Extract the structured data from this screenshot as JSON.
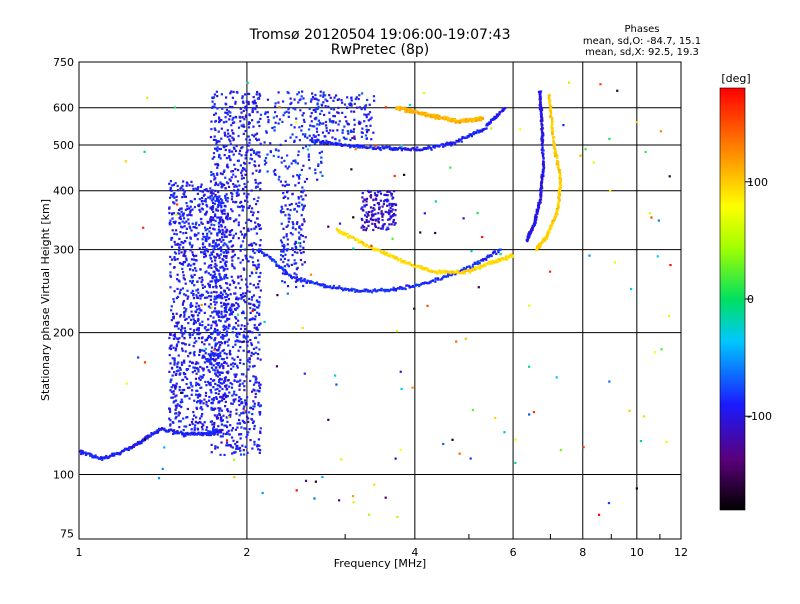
{
  "chart_data": {
    "type": "scatter",
    "title": "Tromsø 20120504 19:06:00-19:07:43",
    "subtitle": "RwPretec (8p)",
    "xlabel": "Frequency [MHz]",
    "ylabel": "Stationary phase Virtual Height [km]",
    "x_scale": "log",
    "y_scale": "log",
    "xlim": [
      1,
      12
    ],
    "ylim": [
      73,
      750
    ],
    "x_ticks": [
      1,
      2,
      4,
      6,
      8,
      10,
      12
    ],
    "x_tick_labels": [
      "1",
      "2",
      "4",
      "6",
      "8",
      "10",
      "12"
    ],
    "x_grid_lines": [
      1,
      2,
      4,
      6,
      8,
      10,
      12
    ],
    "y_ticks": [
      75,
      100,
      200,
      300,
      400,
      500,
      600,
      750
    ],
    "y_tick_labels": [
      "75",
      "100",
      "200",
      "300",
      "400",
      "500",
      "600",
      "750"
    ],
    "y_grid_lines": [
      100,
      200,
      300,
      400,
      500,
      600
    ],
    "grid": true,
    "phase_stats": {
      "heading": "Phases",
      "line_o": "mean, sd,O: -84.7, 15.1",
      "line_x": "mean, sd,X:  92.5, 19.3"
    },
    "colorbar": {
      "unit_label": "[deg]",
      "range": [
        -180,
        180
      ],
      "ticks": [
        100,
        0,
        -100
      ],
      "tick_labels": [
        "100",
        "0",
        "-100"
      ],
      "colormap": "rainbow (black-purple-blue-cyan-green-yellow-orange-red)"
    },
    "traces": [
      {
        "kind": "dense-band",
        "x_range": [
          1.72,
          2.12
        ],
        "y_range": [
          110,
          650
        ],
        "phase": -110
      },
      {
        "kind": "dense-band",
        "x_range": [
          1.45,
          1.85
        ],
        "y_range": [
          120,
          420
        ],
        "phase": -110
      },
      {
        "kind": "low-trace",
        "points": [
          [
            1.0,
            112
          ],
          [
            1.1,
            108
          ],
          [
            1.2,
            112
          ],
          [
            1.3,
            118
          ],
          [
            1.4,
            125
          ],
          [
            1.55,
            122
          ],
          [
            1.7,
            122
          ],
          [
            1.8,
            124
          ]
        ],
        "phase": -110
      },
      {
        "kind": "o-trace-F1",
        "points": [
          [
            2.1,
            300
          ],
          [
            2.4,
            262
          ],
          [
            2.8,
            250
          ],
          [
            3.2,
            245
          ],
          [
            3.7,
            247
          ],
          [
            4.3,
            257
          ],
          [
            5.0,
            275
          ],
          [
            5.7,
            300
          ]
        ],
        "phase": -105
      },
      {
        "kind": "o-trace-F2",
        "points": [
          [
            2.6,
            510
          ],
          [
            3.0,
            500
          ],
          [
            3.5,
            492
          ],
          [
            4.1,
            490
          ],
          [
            4.7,
            505
          ],
          [
            5.3,
            540
          ],
          [
            5.8,
            600
          ]
        ],
        "phase": -110
      },
      {
        "kind": "x-trace-F1",
        "points": [
          [
            2.9,
            330
          ],
          [
            3.3,
            305
          ],
          [
            3.8,
            283
          ],
          [
            4.3,
            270
          ],
          [
            4.9,
            268
          ],
          [
            5.5,
            282
          ],
          [
            6.0,
            292
          ]
        ],
        "phase": 95
      },
      {
        "kind": "x-trace-F2",
        "points": [
          [
            3.7,
            600
          ],
          [
            4.2,
            580
          ],
          [
            4.8,
            560
          ],
          [
            5.3,
            570
          ]
        ],
        "phase": 110
      },
      {
        "kind": "cusp-o",
        "points": [
          [
            6.7,
            650
          ],
          [
            6.75,
            560
          ],
          [
            6.8,
            450
          ],
          [
            6.7,
            380
          ],
          [
            6.55,
            340
          ],
          [
            6.35,
            315
          ]
        ],
        "phase": -115
      },
      {
        "kind": "cusp-x",
        "points": [
          [
            6.95,
            640
          ],
          [
            7.1,
            500
          ],
          [
            7.3,
            420
          ],
          [
            7.2,
            360
          ],
          [
            6.9,
            320
          ],
          [
            6.6,
            300
          ]
        ],
        "phase": 100
      }
    ]
  }
}
